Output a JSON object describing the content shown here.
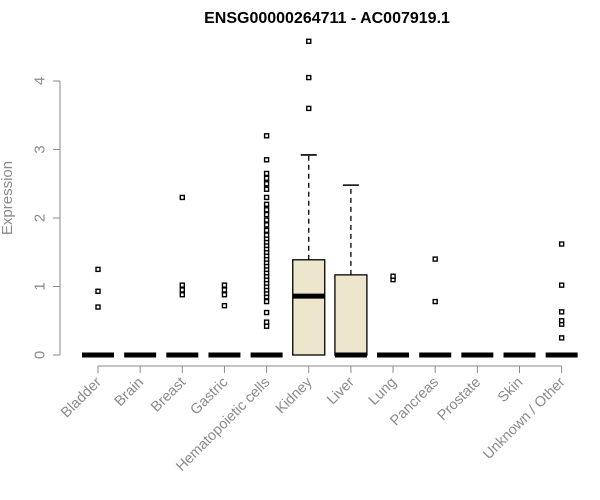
{
  "chart_data": {
    "type": "box",
    "title": "ENSG00000264711 - AC007919.1",
    "ylabel": "Expression",
    "xlabel": "",
    "ylim": [
      0,
      4.6
    ],
    "yticks": [
      0,
      1,
      2,
      3,
      4
    ],
    "grid": false,
    "box_fill": "#ede6cc",
    "categories": [
      "Bladder",
      "Brain",
      "Breast",
      "Gastric",
      "Hematopoietic cells",
      "Kidney",
      "Liver",
      "Lung",
      "Pancreas",
      "Prostate",
      "Skin",
      "Unknown / Other"
    ],
    "boxes": [
      {
        "q1": 0,
        "median": 0,
        "q3": 0,
        "whisker_low": 0,
        "whisker_high": 0,
        "outliers": [
          0.7,
          0.93,
          1.25
        ]
      },
      {
        "q1": 0,
        "median": 0,
        "q3": 0,
        "whisker_low": 0,
        "whisker_high": 0,
        "outliers": []
      },
      {
        "q1": 0,
        "median": 0,
        "q3": 0,
        "whisker_low": 0,
        "whisker_high": 0,
        "outliers": [
          0.88,
          0.95,
          1.02,
          2.3
        ]
      },
      {
        "q1": 0,
        "median": 0,
        "q3": 0,
        "whisker_low": 0,
        "whisker_high": 0,
        "outliers": [
          0.72,
          0.88,
          0.95,
          1.02
        ]
      },
      {
        "q1": 0,
        "median": 0,
        "q3": 0,
        "whisker_low": 0,
        "whisker_high": 0,
        "outliers": [
          0.42,
          0.48,
          0.62,
          0.78,
          0.85,
          0.9,
          0.95,
          1.0,
          1.05,
          1.1,
          1.15,
          1.2,
          1.25,
          1.3,
          1.35,
          1.4,
          1.45,
          1.5,
          1.55,
          1.6,
          1.65,
          1.7,
          1.75,
          1.82,
          1.9,
          1.97,
          2.05,
          2.12,
          2.2,
          2.3,
          2.42,
          2.5,
          2.58,
          2.65,
          2.85,
          3.2
        ]
      },
      {
        "q1": 0,
        "median": 0.86,
        "q3": 1.39,
        "whisker_low": 0,
        "whisker_high": 2.92,
        "outliers": [
          3.6,
          4.05,
          4.58
        ]
      },
      {
        "q1": 0,
        "median": 0,
        "q3": 1.17,
        "whisker_low": 0,
        "whisker_high": 2.48,
        "outliers": []
      },
      {
        "q1": 0,
        "median": 0,
        "q3": 0,
        "whisker_low": 0,
        "whisker_high": 0,
        "outliers": [
          1.1,
          1.15
        ]
      },
      {
        "q1": 0,
        "median": 0,
        "q3": 0,
        "whisker_low": 0,
        "whisker_high": 0,
        "outliers": [
          0.78,
          1.4
        ]
      },
      {
        "q1": 0,
        "median": 0,
        "q3": 0,
        "whisker_low": 0,
        "whisker_high": 0,
        "outliers": []
      },
      {
        "q1": 0,
        "median": 0,
        "q3": 0,
        "whisker_low": 0,
        "whisker_high": 0,
        "outliers": []
      },
      {
        "q1": 0,
        "median": 0,
        "q3": 0,
        "whisker_low": 0,
        "whisker_high": 0,
        "outliers": [
          0.25,
          0.45,
          0.5,
          0.63,
          1.02,
          1.62
        ]
      }
    ]
  }
}
